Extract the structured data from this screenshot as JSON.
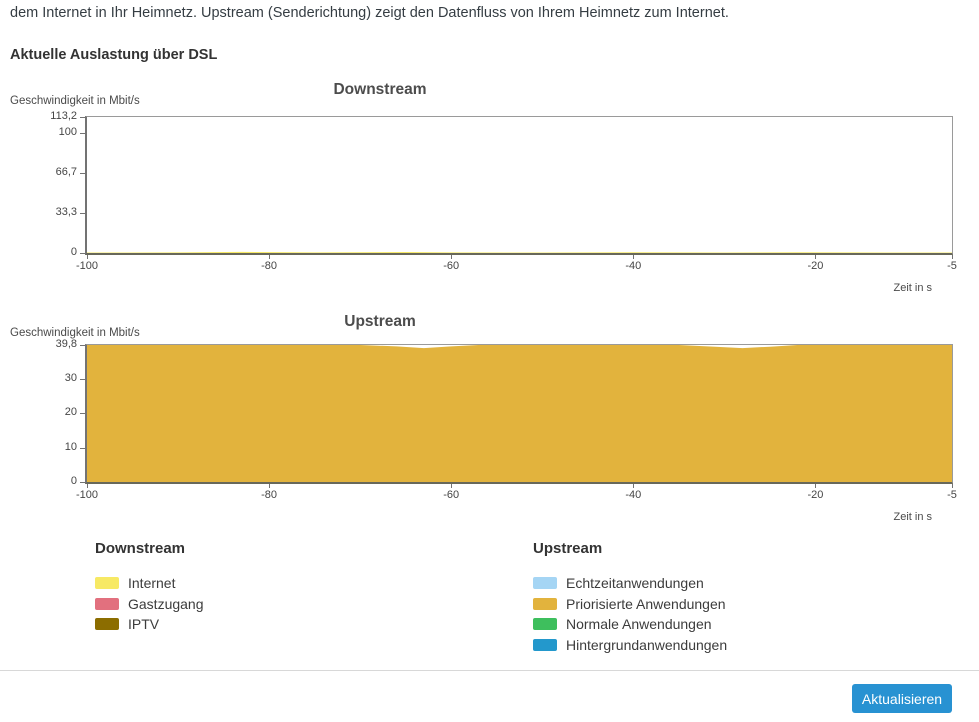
{
  "intro_text": "dem Internet in Ihr Heimnetz. Upstream (Senderichtung) zeigt den Datenfluss von Ihrem Heimnetz zum Internet.",
  "section_title": "Aktuelle Auslastung über DSL",
  "chart_data": [
    {
      "type": "area",
      "title": "Downstream",
      "ylabel": "Geschwindigkeit in Mbit/s",
      "xlabel": "Zeit in s",
      "ylim": [
        0,
        113.2
      ],
      "xlim": [
        -100,
        -5
      ],
      "grid": false,
      "legend_position": "below",
      "yticks": [
        {
          "value": 113.2,
          "label": "113,2"
        },
        {
          "value": 100,
          "label": "100"
        },
        {
          "value": 66.7,
          "label": "66,7"
        },
        {
          "value": 33.3,
          "label": "33,3"
        },
        {
          "value": 0,
          "label": "0"
        }
      ],
      "xticks": [
        {
          "value": -100,
          "label": "-100"
        },
        {
          "value": -80,
          "label": "-80"
        },
        {
          "value": -60,
          "label": "-60"
        },
        {
          "value": -40,
          "label": "-40"
        },
        {
          "value": -20,
          "label": "-20"
        },
        {
          "value": -5,
          "label": "-5"
        }
      ],
      "series": [
        {
          "name": "Internet",
          "color": "#f7e964",
          "x": [
            -100,
            -90,
            -83,
            -75,
            -65,
            -60,
            -50,
            -40,
            -30,
            -22,
            -12,
            -5
          ],
          "y": [
            0.4,
            0.5,
            0.9,
            0.5,
            0.8,
            0.5,
            0.4,
            0.6,
            0.4,
            0.7,
            0.4,
            0.4
          ]
        },
        {
          "name": "Gastzugang",
          "color": "#e2707e",
          "y_constant": 0
        },
        {
          "name": "IPTV",
          "color": "#8c6d00",
          "y_constant": 0
        }
      ]
    },
    {
      "type": "area",
      "title": "Upstream",
      "ylabel": "Geschwindigkeit in Mbit/s",
      "xlabel": "Zeit in s",
      "ylim": [
        0,
        39.8
      ],
      "xlim": [
        -100,
        -5
      ],
      "grid": false,
      "legend_position": "below",
      "yticks": [
        {
          "value": 39.8,
          "label": "39,8"
        },
        {
          "value": 30,
          "label": "30"
        },
        {
          "value": 20,
          "label": "20"
        },
        {
          "value": 10,
          "label": "10"
        },
        {
          "value": 0,
          "label": "0"
        }
      ],
      "xticks": [
        {
          "value": -100,
          "label": "-100"
        },
        {
          "value": -80,
          "label": "-80"
        },
        {
          "value": -60,
          "label": "-60"
        },
        {
          "value": -40,
          "label": "-40"
        },
        {
          "value": -20,
          "label": "-20"
        },
        {
          "value": -5,
          "label": "-5"
        }
      ],
      "series": [
        {
          "name": "Echtzeitanwendungen",
          "color": "#a5d5f4",
          "y_constant": 0
        },
        {
          "name": "Priorisierte Anwendungen",
          "color": "#e2b33d",
          "x": [
            -100,
            -70,
            -66,
            -63,
            -60,
            -57,
            -35,
            -31,
            -28,
            -25,
            -22,
            -5
          ],
          "y": [
            39.8,
            39.8,
            39.4,
            38.9,
            39.4,
            39.8,
            39.8,
            39.3,
            38.9,
            39.3,
            39.8,
            39.8
          ]
        },
        {
          "name": "Normale Anwendungen",
          "color": "#3ebf5d",
          "y_constant": 0
        },
        {
          "name": "Hintergrundanwendungen",
          "color": "#2398cc",
          "y_constant": 0
        }
      ]
    }
  ],
  "legends": [
    {
      "title": "Downstream",
      "items": [
        {
          "label": "Internet",
          "color": "#f7e964"
        },
        {
          "label": "Gastzugang",
          "color": "#e2707e"
        },
        {
          "label": "IPTV",
          "color": "#8c6d00"
        }
      ]
    },
    {
      "title": "Upstream",
      "items": [
        {
          "label": "Echtzeitanwendungen",
          "color": "#a5d5f4"
        },
        {
          "label": "Priorisierte Anwendungen",
          "color": "#e2b33d"
        },
        {
          "label": "Normale Anwendungen",
          "color": "#3ebf5d"
        },
        {
          "label": "Hintergrundanwendungen",
          "color": "#2398cc"
        }
      ]
    }
  ],
  "footer": {
    "refresh_label": "Aktualisieren",
    "button_color": "#2892d2"
  }
}
